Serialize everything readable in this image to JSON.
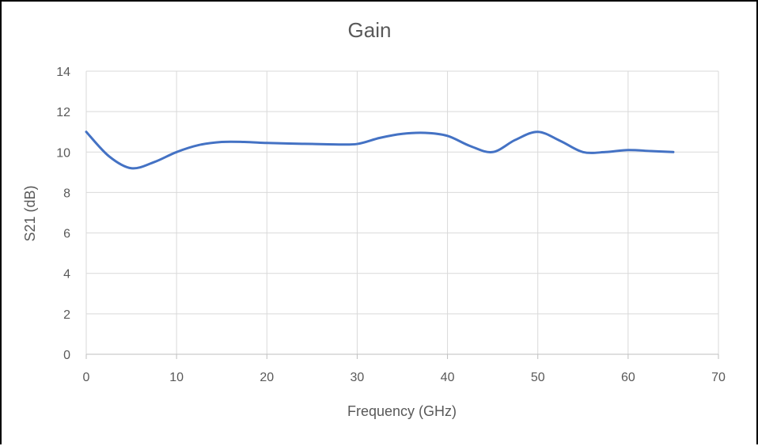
{
  "chart_data": {
    "type": "line",
    "title": "Gain",
    "xlabel": "Frequency (GHz)",
    "ylabel": "S21 (dB)",
    "xlim": [
      0,
      70
    ],
    "ylim": [
      0,
      14
    ],
    "x_ticks": [
      0,
      10,
      20,
      30,
      40,
      50,
      60,
      70
    ],
    "y_ticks": [
      0,
      2,
      4,
      6,
      8,
      10,
      12,
      14
    ],
    "grid": true,
    "legend": "none",
    "series": [
      {
        "color": "#4472C4",
        "x": [
          0,
          2.5,
          5,
          7.5,
          10,
          12.5,
          15,
          17.5,
          20,
          22.5,
          25,
          27.5,
          30,
          32.5,
          35,
          37.5,
          40,
          42.5,
          45,
          47.5,
          50,
          52.5,
          55,
          57.5,
          60,
          62.5,
          65
        ],
        "values": [
          11.0,
          9.8,
          9.2,
          9.5,
          10.0,
          10.35,
          10.5,
          10.5,
          10.45,
          10.42,
          10.4,
          10.38,
          10.4,
          10.7,
          10.9,
          10.95,
          10.8,
          10.3,
          10.0,
          10.6,
          11.0,
          10.55,
          10.0,
          10.0,
          10.1,
          10.05,
          10.0
        ]
      }
    ]
  }
}
